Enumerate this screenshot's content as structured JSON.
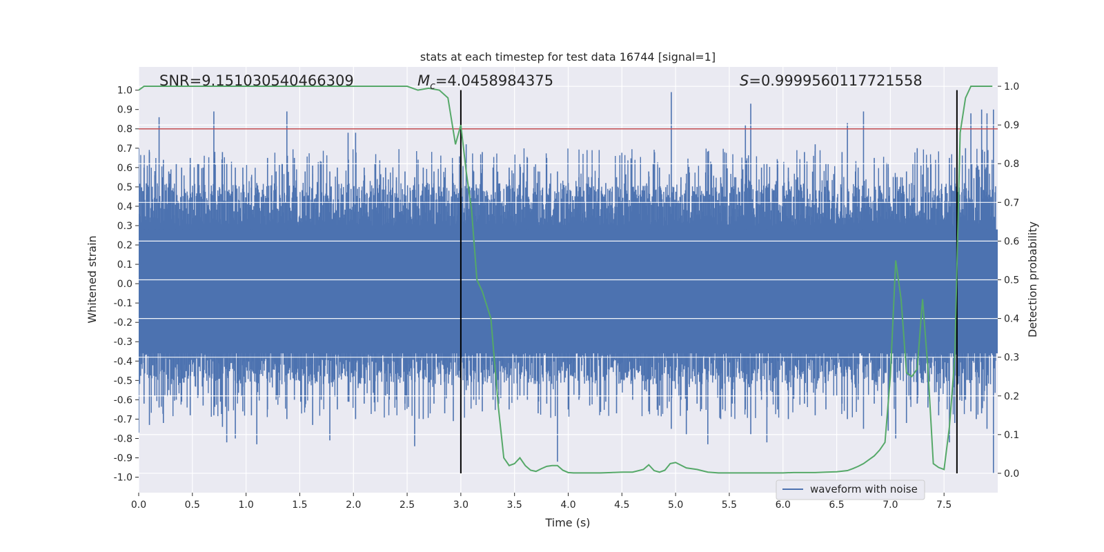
{
  "chart_data": {
    "type": "line",
    "title": "stats at each timestep for test data 16744 [signal=1]",
    "xlabel": "Time (s)",
    "ylabel": "Whitened strain",
    "y2label": "Detection probability",
    "xlim": [
      0.0,
      8.0
    ],
    "ylim": [
      -1.08,
      1.12
    ],
    "y2lim": [
      -0.05,
      1.05
    ],
    "x_ticks": [
      "0.0",
      "0.5",
      "1.0",
      "1.5",
      "2.0",
      "2.5",
      "3.0",
      "3.5",
      "4.0",
      "4.5",
      "5.0",
      "5.5",
      "6.0",
      "6.5",
      "7.0",
      "7.5"
    ],
    "y_ticks": [
      "1.0",
      "0.9",
      "0.8",
      "0.7",
      "0.6",
      "0.5",
      "0.4",
      "0.3",
      "0.2",
      "0.1",
      "0.0",
      "-0.1",
      "-0.2",
      "-0.3",
      "-0.4",
      "-0.5",
      "-0.6",
      "-0.7",
      "-0.8",
      "-0.9",
      "-1.0"
    ],
    "y2_ticks": [
      "1.0",
      "0.9",
      "0.8",
      "0.7",
      "0.6",
      "0.5",
      "0.4",
      "0.3",
      "0.2",
      "0.1",
      "0.0"
    ],
    "grid": true,
    "legend_position": "bottom-right",
    "annotations": {
      "snr": "SNR=9.151030540466309",
      "mc_symbol": "M",
      "mc_sub": "c",
      "mc_value": "=4.0458984375",
      "s_symbol": "S",
      "s_value": "=0.9999560117721558"
    },
    "threshold_line": {
      "y": 0.8,
      "color": "#c44e52"
    },
    "vertical_lines": [
      3.0,
      7.62
    ],
    "series": [
      {
        "name": "waveform with noise",
        "axis": "left",
        "color": "#4c72b0",
        "peaks": [
          [
            0.0,
            0.7,
            -0.77
          ],
          [
            0.05,
            0.6,
            -0.62
          ],
          [
            0.1,
            0.68,
            -0.73
          ],
          [
            0.15,
            0.56,
            -0.58
          ],
          [
            0.19,
            0.86,
            -0.64
          ],
          [
            0.23,
            0.64,
            -0.72
          ],
          [
            0.28,
            0.58,
            -0.55
          ],
          [
            0.35,
            0.62,
            -0.6
          ],
          [
            0.4,
            0.6,
            -0.61
          ],
          [
            0.48,
            0.65,
            -0.68
          ],
          [
            0.55,
            0.62,
            -0.59
          ],
          [
            0.6,
            0.6,
            -0.63
          ],
          [
            0.7,
            0.89,
            -0.68
          ],
          [
            0.78,
            0.68,
            -0.74
          ],
          [
            0.82,
            0.62,
            -0.82
          ],
          [
            0.9,
            0.6,
            -0.8
          ],
          [
            0.97,
            0.6,
            -0.66
          ],
          [
            1.05,
            0.55,
            -0.68
          ],
          [
            1.1,
            0.52,
            -0.83
          ],
          [
            1.2,
            0.65,
            -0.65
          ],
          [
            1.28,
            0.58,
            -0.6
          ],
          [
            1.38,
            0.89,
            -0.7
          ],
          [
            1.45,
            0.65,
            -0.6
          ],
          [
            1.55,
            0.58,
            -0.64
          ],
          [
            1.62,
            0.61,
            -0.73
          ],
          [
            1.7,
            0.63,
            -0.6
          ],
          [
            1.78,
            0.58,
            -0.81
          ],
          [
            1.85,
            0.6,
            -0.65
          ],
          [
            1.95,
            0.78,
            -0.61
          ],
          [
            2.02,
            0.78,
            -0.7
          ],
          [
            2.1,
            0.6,
            -0.62
          ],
          [
            2.2,
            0.62,
            -0.66
          ],
          [
            2.3,
            0.6,
            -0.58
          ],
          [
            2.4,
            0.55,
            -0.6
          ],
          [
            2.48,
            0.58,
            -0.62
          ],
          [
            2.57,
            0.55,
            -0.84
          ],
          [
            2.65,
            0.6,
            -0.7
          ],
          [
            2.75,
            0.58,
            -0.62
          ],
          [
            2.85,
            0.55,
            -0.67
          ],
          [
            2.93,
            0.52,
            -0.71
          ],
          [
            3.05,
            0.72,
            -0.55
          ],
          [
            3.12,
            0.58,
            -0.6
          ],
          [
            3.2,
            0.68,
            -0.66
          ],
          [
            3.3,
            0.6,
            -0.6
          ],
          [
            3.45,
            0.6,
            -0.65
          ],
          [
            3.55,
            0.62,
            -0.58
          ],
          [
            3.62,
            0.65,
            -0.6
          ],
          [
            3.72,
            0.58,
            -0.67
          ],
          [
            3.8,
            0.65,
            -0.62
          ],
          [
            3.9,
            0.58,
            -0.92
          ],
          [
            4.0,
            0.52,
            -0.65
          ],
          [
            4.1,
            0.55,
            -0.6
          ],
          [
            4.2,
            0.5,
            -0.63
          ],
          [
            4.35,
            0.52,
            -0.61
          ],
          [
            4.45,
            0.55,
            -0.67
          ],
          [
            4.6,
            0.5,
            -0.6
          ],
          [
            4.75,
            0.58,
            -0.66
          ],
          [
            4.85,
            0.6,
            -0.63
          ],
          [
            4.96,
            0.99,
            -0.75
          ],
          [
            5.05,
            0.55,
            -0.6
          ],
          [
            5.1,
            0.52,
            -0.78
          ],
          [
            5.2,
            0.5,
            -0.62
          ],
          [
            5.3,
            0.56,
            -0.83
          ],
          [
            5.42,
            0.55,
            -0.7
          ],
          [
            5.55,
            0.55,
            -0.62
          ],
          [
            5.65,
            0.82,
            -0.65
          ],
          [
            5.7,
            0.93,
            -0.78
          ],
          [
            5.8,
            0.6,
            -0.6
          ],
          [
            5.85,
            0.62,
            -0.82
          ],
          [
            5.95,
            0.6,
            -0.65
          ],
          [
            6.05,
            0.6,
            -0.7
          ],
          [
            6.2,
            0.68,
            -0.62
          ],
          [
            6.3,
            0.72,
            -0.68
          ],
          [
            6.4,
            0.62,
            -0.65
          ],
          [
            6.55,
            0.68,
            -0.62
          ],
          [
            6.6,
            0.83,
            -0.7
          ],
          [
            6.7,
            0.6,
            -0.6
          ],
          [
            6.75,
            0.89,
            -0.75
          ],
          [
            6.85,
            0.65,
            -0.62
          ],
          [
            6.98,
            0.6,
            -0.76
          ],
          [
            7.05,
            0.55,
            -0.8
          ],
          [
            7.15,
            0.58,
            -0.72
          ],
          [
            7.25,
            0.7,
            -0.62
          ],
          [
            7.35,
            0.6,
            -0.64
          ],
          [
            7.45,
            0.62,
            -0.68
          ],
          [
            7.55,
            0.65,
            -0.82
          ],
          [
            7.6,
            0.6,
            -0.72
          ],
          [
            7.7,
            0.7,
            -0.6
          ],
          [
            7.75,
            0.88,
            -0.66
          ],
          [
            7.8,
            0.6,
            -0.7
          ],
          [
            7.85,
            0.9,
            -0.67
          ],
          [
            7.9,
            0.88,
            -0.75
          ],
          [
            7.96,
            0.9,
            -0.98
          ]
        ]
      },
      {
        "name": "",
        "axis": "right",
        "color": "#55a868",
        "x": [
          0.0,
          0.05,
          0.1,
          0.5,
          1.0,
          1.5,
          2.0,
          2.5,
          2.6,
          2.7,
          2.8,
          2.88,
          2.95,
          3.0,
          3.05,
          3.1,
          3.15,
          3.2,
          3.28,
          3.35,
          3.4,
          3.45,
          3.5,
          3.55,
          3.6,
          3.65,
          3.7,
          3.75,
          3.8,
          3.85,
          3.9,
          3.95,
          4.0,
          4.05,
          4.1,
          4.2,
          4.3,
          4.4,
          4.5,
          4.6,
          4.7,
          4.75,
          4.8,
          4.85,
          4.9,
          4.95,
          5.0,
          5.1,
          5.2,
          5.3,
          5.4,
          5.5,
          5.6,
          5.7,
          5.8,
          5.9,
          6.0,
          6.1,
          6.2,
          6.3,
          6.4,
          6.5,
          6.6,
          6.65,
          6.7,
          6.75,
          6.8,
          6.85,
          6.9,
          6.95,
          7.0,
          7.05,
          7.1,
          7.15,
          7.2,
          7.25,
          7.3,
          7.35,
          7.4,
          7.45,
          7.5,
          7.55,
          7.6,
          7.65,
          7.7,
          7.75,
          7.8,
          7.85,
          7.9,
          7.95
        ],
        "values": [
          0.99,
          1.0,
          1.0,
          1.0,
          1.0,
          1.0,
          1.0,
          1.0,
          0.99,
          0.995,
          0.99,
          0.97,
          0.85,
          0.9,
          0.78,
          0.68,
          0.5,
          0.47,
          0.4,
          0.17,
          0.04,
          0.02,
          0.025,
          0.04,
          0.02,
          0.008,
          0.005,
          0.012,
          0.018,
          0.02,
          0.02,
          0.008,
          0.002,
          0.001,
          0.001,
          0.001,
          0.001,
          0.002,
          0.003,
          0.003,
          0.01,
          0.022,
          0.007,
          0.003,
          0.008,
          0.025,
          0.028,
          0.014,
          0.01,
          0.003,
          0.001,
          0.001,
          0.001,
          0.001,
          0.001,
          0.001,
          0.001,
          0.002,
          0.002,
          0.002,
          0.003,
          0.004,
          0.007,
          0.012,
          0.018,
          0.025,
          0.035,
          0.045,
          0.06,
          0.08,
          0.25,
          0.55,
          0.45,
          0.26,
          0.25,
          0.27,
          0.45,
          0.27,
          0.025,
          0.015,
          0.01,
          0.12,
          0.3,
          0.88,
          0.97,
          1.0,
          1.0,
          1.0,
          1.0,
          1.0
        ]
      }
    ]
  }
}
